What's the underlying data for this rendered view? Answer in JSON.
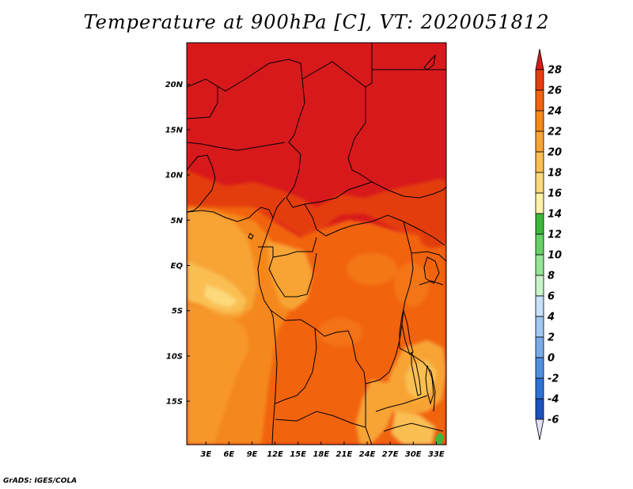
{
  "chart_data": {
    "type": "heatmap",
    "title": "Temperature at 900hPa [C], VT: 2020051812",
    "x_ticks": [
      "3E",
      "6E",
      "9E",
      "12E",
      "15E",
      "18E",
      "21E",
      "24E",
      "27E",
      "30E",
      "33E"
    ],
    "y_ticks": [
      "20N",
      "15N",
      "10N",
      "5N",
      "EQ",
      "5S",
      "10S",
      "15S"
    ],
    "x_range_lon": [
      0.5,
      34.3
    ],
    "y_range_lat": [
      -19.8,
      24.6
    ],
    "grid": false,
    "legend_position": "right",
    "colorbar": {
      "levels": [
        28,
        26,
        24,
        22,
        20,
        18,
        16,
        14,
        12,
        10,
        8,
        6,
        4,
        2,
        0,
        -2,
        -4,
        -6
      ],
      "colors": [
        "#d7191c",
        "#e43d0f",
        "#f2630f",
        "#f5881a",
        "#f7a436",
        "#fabf52",
        "#fdd97c",
        "#fff1a8",
        "#3cb83c",
        "#67d168",
        "#95e596",
        "#c9f4c9",
        "#c6e1f8",
        "#a0c8f0",
        "#7aabe6",
        "#5090de",
        "#2e72d6",
        "#1a50bf",
        "#0f3296",
        "#0a1c73"
      ],
      "extends": "both"
    }
  },
  "footer": {
    "credit": "GrADS: IGES/COLA"
  }
}
